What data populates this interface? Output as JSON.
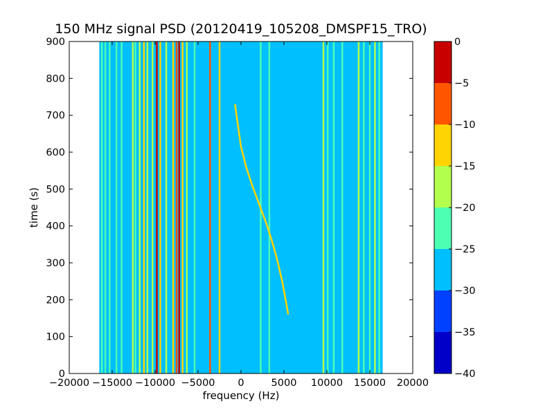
{
  "chart_data": {
    "type": "heatmap",
    "title": "150 MHz signal PSD (20120419_105208_DMSPF15_TRO)",
    "xlabel": "frequency (Hz)",
    "ylabel": "time (s)",
    "xlim": [
      -20000,
      20000
    ],
    "ylim": [
      0,
      900
    ],
    "x_ticks": [
      -20000,
      -15000,
      -10000,
      -5000,
      0,
      5000,
      10000,
      15000,
      20000
    ],
    "x_tick_labels": [
      "−20000",
      "−15000",
      "−10000",
      "−5000",
      "0",
      "5000",
      "10000",
      "15000",
      "20000"
    ],
    "y_ticks": [
      0,
      100,
      200,
      300,
      400,
      500,
      600,
      700,
      800,
      900
    ],
    "y_tick_labels": [
      "0",
      "100",
      "200",
      "300",
      "400",
      "500",
      "600",
      "700",
      "800",
      "900"
    ],
    "data_x_range": [
      -16500,
      16500
    ],
    "background_level": [
      -30,
      -25
    ],
    "colorbar": {
      "levels": [
        -40,
        -35,
        -30,
        -25,
        -20,
        -15,
        -10,
        -5,
        0
      ],
      "tick_labels": [
        "−40",
        "−35",
        "−30",
        "−25",
        "−20",
        "−15",
        "−10",
        "−5",
        "0"
      ],
      "colors": [
        "#0000c8",
        "#0040ff",
        "#00bfff",
        "#4dffb2",
        "#b3ff4d",
        "#ffd400",
        "#ff5500",
        "#c80000"
      ]
    },
    "vertical_features": [
      {
        "freq": -16200,
        "level": [
          -25,
          -20
        ]
      },
      {
        "freq": -15800,
        "level": [
          -25,
          -20
        ]
      },
      {
        "freq": -15300,
        "level": [
          -25,
          -20
        ]
      },
      {
        "freq": -14500,
        "level": [
          -25,
          -20
        ]
      },
      {
        "freq": -13900,
        "level": [
          -25,
          -20
        ]
      },
      {
        "freq": -12600,
        "level": [
          -20,
          -15
        ]
      },
      {
        "freq": -12300,
        "level": [
          -25,
          -20
        ]
      },
      {
        "freq": -11800,
        "level": [
          -20,
          -15
        ]
      },
      {
        "freq": -11300,
        "level": [
          -15,
          -10
        ]
      },
      {
        "freq": -10900,
        "level": [
          -20,
          -15
        ]
      },
      {
        "freq": -10300,
        "level": [
          -20,
          -15
        ]
      },
      {
        "freq": -9800,
        "level": [
          -5,
          0
        ]
      },
      {
        "freq": -9400,
        "level": [
          -15,
          -10
        ]
      },
      {
        "freq": -8700,
        "level": [
          -20,
          -15
        ]
      },
      {
        "freq": -7900,
        "level": [
          -15,
          -10
        ]
      },
      {
        "freq": -7500,
        "level": [
          -10,
          -5
        ]
      },
      {
        "freq": -7200,
        "level": [
          -5,
          0
        ]
      },
      {
        "freq": -6800,
        "level": [
          -15,
          -10
        ]
      },
      {
        "freq": -6300,
        "level": [
          -20,
          -15
        ]
      },
      {
        "freq": -5400,
        "level": [
          -25,
          -20
        ]
      },
      {
        "freq": -3600,
        "level": [
          -10,
          -5
        ]
      },
      {
        "freq": -2500,
        "level": [
          -15,
          -10
        ]
      },
      {
        "freq": 2300,
        "level": [
          -25,
          -20
        ]
      },
      {
        "freq": 3300,
        "level": [
          -25,
          -20
        ]
      },
      {
        "freq": 9600,
        "level": [
          -20,
          -15
        ]
      },
      {
        "freq": 10100,
        "level": [
          -25,
          -20
        ]
      },
      {
        "freq": 10800,
        "level": [
          -25,
          -20
        ]
      },
      {
        "freq": 11800,
        "level": [
          -25,
          -20
        ]
      },
      {
        "freq": 13700,
        "level": [
          -20,
          -15
        ]
      },
      {
        "freq": 14300,
        "level": [
          -25,
          -20
        ]
      },
      {
        "freq": 15000,
        "level": [
          -25,
          -20
        ]
      },
      {
        "freq": 15600,
        "level": [
          -20,
          -15
        ]
      },
      {
        "freq": 16100,
        "level": [
          -25,
          -20
        ]
      }
    ],
    "doppler_curve": {
      "level": [
        -15,
        -10
      ],
      "points": [
        {
          "x": -700,
          "y": 730
        },
        {
          "x": -400,
          "y": 680
        },
        {
          "x": 0,
          "y": 615
        },
        {
          "x": 600,
          "y": 560
        },
        {
          "x": 1300,
          "y": 510
        },
        {
          "x": 2100,
          "y": 460
        },
        {
          "x": 2900,
          "y": 410
        },
        {
          "x": 3600,
          "y": 360
        },
        {
          "x": 4200,
          "y": 310
        },
        {
          "x": 4800,
          "y": 250
        },
        {
          "x": 5200,
          "y": 200
        },
        {
          "x": 5500,
          "y": 160
        }
      ]
    }
  }
}
